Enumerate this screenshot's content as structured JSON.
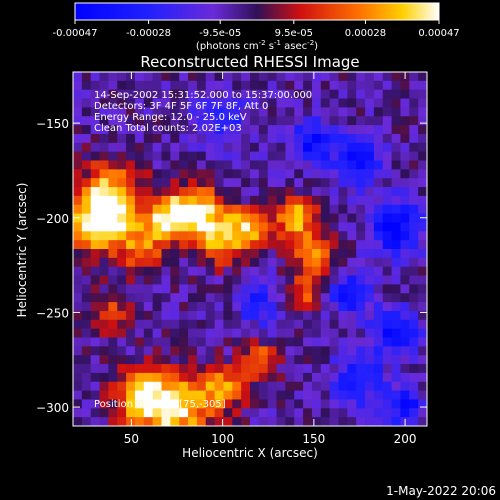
{
  "chart_data": {
    "type": "heatmap",
    "title": "Reconstructed RHESSI Image",
    "xlabel": "Heliocentric X (arcsec)",
    "ylabel": "Heliocentric Y (arcsec)",
    "xlim": [
      18,
      212
    ],
    "ylim": [
      -310,
      -123
    ],
    "x_ticks": [
      50,
      100,
      150,
      200
    ],
    "y_ticks": [
      -150,
      -200,
      -250,
      -300
    ],
    "colorbar": {
      "ticks": [
        "-0.00047",
        "-0.00028",
        "-9.5e-05",
        "9.5e-05",
        "0.00028",
        "0.00047"
      ],
      "unit_label": "(photons cm",
      "unit_exp1": "-2",
      "unit_mid": " s",
      "unit_exp2": "-1",
      "unit_mid2": " asec",
      "unit_exp3": "-2",
      "unit_close": ")",
      "range": [
        -0.00047,
        0.00047
      ]
    },
    "annotations": [
      "14-Sep-2002 15:31:52.000 to 15:37:00.000",
      "Detectors: 3F 4F 5F 6F 7F 8F, Att 0",
      "Energy Range: 12.0 - 25.0 keV",
      "Clean     Total counts: 2.02E+03"
    ],
    "peak_label": "Position of Peak: [75,-305]",
    "peak": [
      75,
      -305
    ],
    "intensity_blobs": [
      {
        "x": 38,
        "y": -190,
        "v": 0.00047,
        "r": 18
      },
      {
        "x": 30,
        "y": -205,
        "v": 0.0004,
        "r": 14
      },
      {
        "x": 55,
        "y": -215,
        "v": 0.0003,
        "r": 14
      },
      {
        "x": 70,
        "y": -200,
        "v": 0.0004,
        "r": 12
      },
      {
        "x": 85,
        "y": -195,
        "v": 0.00045,
        "r": 13
      },
      {
        "x": 100,
        "y": -210,
        "v": 0.00043,
        "r": 14
      },
      {
        "x": 115,
        "y": -205,
        "v": 0.00032,
        "r": 10
      },
      {
        "x": 140,
        "y": -200,
        "v": 0.00045,
        "r": 11
      },
      {
        "x": 150,
        "y": -220,
        "v": 0.00032,
        "r": 12
      },
      {
        "x": 145,
        "y": -240,
        "v": 0.00028,
        "r": 9
      },
      {
        "x": 75,
        "y": -300,
        "v": 0.00047,
        "r": 18
      },
      {
        "x": 55,
        "y": -295,
        "v": 0.0004,
        "r": 15
      },
      {
        "x": 100,
        "y": -290,
        "v": 0.00035,
        "r": 12
      },
      {
        "x": 120,
        "y": -275,
        "v": 0.0003,
        "r": 10
      },
      {
        "x": 40,
        "y": -250,
        "v": 0.00022,
        "r": 12
      },
      {
        "x": 150,
        "y": -160,
        "v": -0.00035,
        "r": 12
      },
      {
        "x": 175,
        "y": -170,
        "v": -0.0004,
        "r": 12
      },
      {
        "x": 195,
        "y": -205,
        "v": -0.00042,
        "r": 14
      },
      {
        "x": 170,
        "y": -240,
        "v": -0.0003,
        "r": 12
      },
      {
        "x": 195,
        "y": -260,
        "v": -0.00035,
        "r": 12
      },
      {
        "x": 175,
        "y": -285,
        "v": -0.0003,
        "r": 14
      },
      {
        "x": 200,
        "y": -300,
        "v": -0.00035,
        "r": 10
      },
      {
        "x": 100,
        "y": -150,
        "v": -0.0002,
        "r": 16
      },
      {
        "x": 120,
        "y": -245,
        "v": -0.00025,
        "r": 12
      }
    ]
  },
  "footer_timestamp": "1-May-2022 20:06"
}
